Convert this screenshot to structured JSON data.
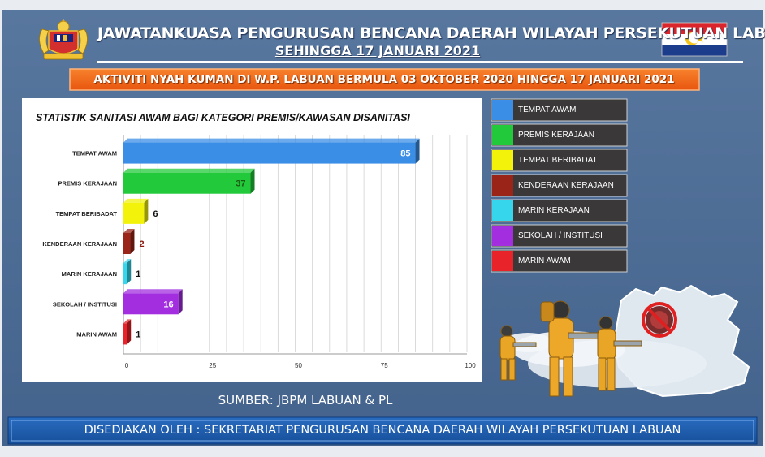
{
  "header": {
    "title": "JAWATANKUASA PENGURUSAN BENCANA DAERAH WILAYAH PERSEKUTUAN LABUAN",
    "subtitle": "SEHINGGA 17 JANUARI 2021",
    "banner": "AKTIVITI NYAH KUMAN DI W.P. LABUAN BERMULA 03 OKTOBER 2020 HINGGA 17 JANUARI 2021"
  },
  "colors": {
    "background": "#4c6a94",
    "banner": "#f06a1c",
    "panel": "#ffffff",
    "footer_bar": "#1f5fb0"
  },
  "chart_data": {
    "type": "bar",
    "orientation": "horizontal",
    "title": "STATISTIK SANITASI AWAM BAGI KATEGORI PREMIS/KAWASAN DISANITASI",
    "categories": [
      "TEMPAT AWAM",
      "PREMIS KERAJAAN",
      "TEMPAT BERIBADAT",
      "KENDERAAN KERAJAAN",
      "MARIN KERAJAAN",
      "SEKOLAH / INSTITUSI",
      "MARIN AWAM"
    ],
    "values": [
      85,
      37,
      6,
      2,
      1,
      16,
      1
    ],
    "colors": [
      "#3a8ee6",
      "#22c93a",
      "#f2f20a",
      "#9a2418",
      "#36d6ec",
      "#a22ee0",
      "#e8242a"
    ],
    "label_colors": [
      "#ffffff",
      "#1b5a14",
      "#111111",
      "#8a1a10",
      "#111111",
      "#ffffff",
      "#111111"
    ],
    "xlim": [
      0,
      100
    ],
    "xticks": [
      0,
      25,
      50,
      75,
      100
    ],
    "grid": true,
    "legend": {
      "position": "right",
      "entries": [
        "TEMPAT AWAM",
        "PREMIS KERAJAAN",
        "TEMPAT BERIBADAT",
        "KENDERAAN KERAJAAN",
        "MARIN KERAJAAN",
        "SEKOLAH / INSTITUSI",
        "MARIN AWAM"
      ]
    }
  },
  "source": "SUMBER: JBPM LABUAN & PL",
  "footer": "DISEDIAKAN OLEH : SEKRETARIAT PENGURUSAN BENCANA DAERAH WILAYAH PERSEKUTUAN LABUAN",
  "images": {
    "left_logo": "coat-of-arms-icon",
    "right_flag": "labuan-flag-icon",
    "illustration": "sanitation-workers-illustration",
    "virus": "virus-prohibited-icon"
  }
}
